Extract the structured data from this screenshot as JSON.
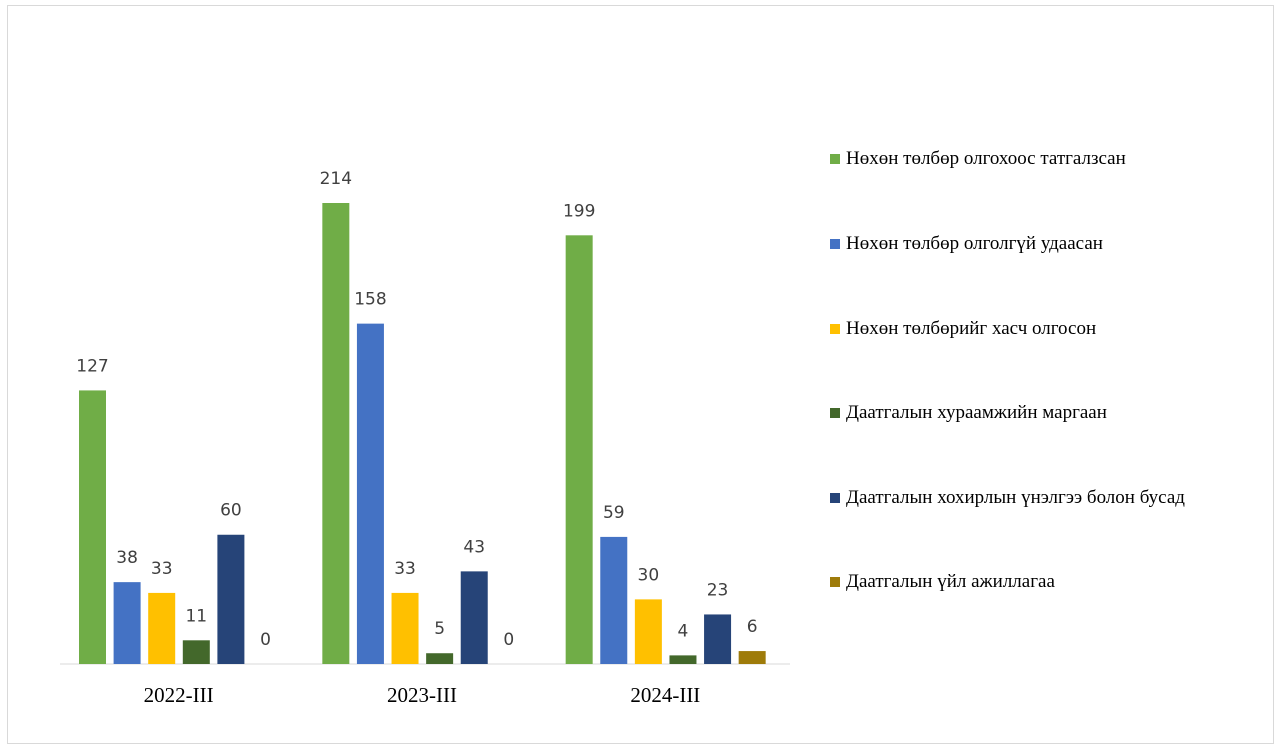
{
  "chart_data": {
    "type": "bar",
    "categories": [
      "2022-III",
      "2023-III",
      "2024-III"
    ],
    "series": [
      {
        "name": "Нөхөн төлбөр олгохоос татгалзсан",
        "color": "#70ad47",
        "values": [
          127,
          214,
          199
        ]
      },
      {
        "name": "Нөхөн төлбөр олголгүй удаасан",
        "color": "#4472c4",
        "values": [
          38,
          158,
          59
        ]
      },
      {
        "name": "Нөхөн төлбөрийг хасч олгосон",
        "color": "#ffc000",
        "values": [
          33,
          33,
          30
        ]
      },
      {
        "name": "Даатгалын хураамжийн маргаан",
        "color": "#43682b",
        "values": [
          11,
          5,
          4
        ]
      },
      {
        "name": "Даатгалын хохирлын үнэлгээ болон бусад",
        "color": "#264478",
        "values": [
          60,
          43,
          23
        ]
      },
      {
        "name": "Даатгалын үйл ажиллагаа",
        "color": "#9e7b0a",
        "values": [
          0,
          0,
          6
        ]
      }
    ],
    "legend": "right"
  }
}
